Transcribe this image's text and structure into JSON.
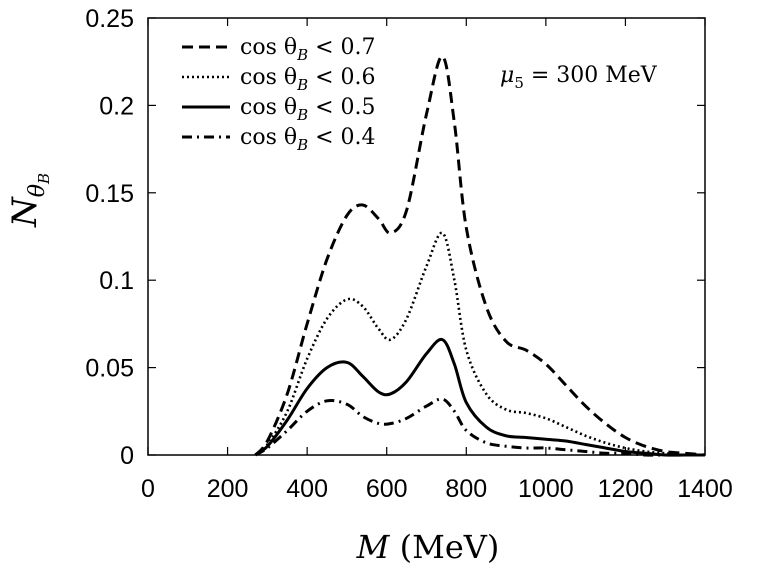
{
  "chart_data": {
    "type": "line",
    "title": "",
    "xlabel": "M",
    "xlabel_unit": "(MeV)",
    "ylabel_main": "N",
    "ylabel_sub": "θ",
    "ylabel_subsub": "B",
    "xlim": [
      0,
      1400
    ],
    "ylim": [
      0,
      0.25
    ],
    "xticks": [
      0,
      200,
      400,
      600,
      800,
      1000,
      1200,
      1400
    ],
    "xtick_labels": [
      "0",
      "200",
      "400",
      "600",
      "800",
      "1000",
      "1200",
      "1400"
    ],
    "yticks": [
      0,
      0.05,
      0.1,
      0.15,
      0.2,
      0.25
    ],
    "ytick_labels": [
      "0",
      "0.05",
      "0.1",
      "0.15",
      "0.2",
      "0.25"
    ],
    "grid": false,
    "legend_position": "top-left",
    "annotation": {
      "prefix": "μ",
      "sub": "5",
      "text": " = 300 MeV"
    },
    "x": [
      270,
      300,
      350,
      400,
      450,
      500,
      540,
      580,
      610,
      650,
      700,
      740,
      770,
      800,
      850,
      900,
      950,
      1000,
      1050,
      1100,
      1150,
      1200,
      1250,
      1300,
      1350,
      1400
    ],
    "series": [
      {
        "name": "cos θ_B < 0.7",
        "label_text": "cos θ",
        "label_sub": "B",
        "label_rest": " < 0.7",
        "style": "dashed",
        "values": [
          0.0,
          0.008,
          0.035,
          0.075,
          0.112,
          0.137,
          0.143,
          0.135,
          0.127,
          0.14,
          0.195,
          0.228,
          0.19,
          0.13,
          0.085,
          0.065,
          0.06,
          0.052,
          0.04,
          0.028,
          0.018,
          0.01,
          0.005,
          0.002,
          0.001,
          0.0
        ]
      },
      {
        "name": "cos θ_B < 0.6",
        "label_text": "cos θ",
        "label_sub": "B",
        "label_rest": " < 0.6",
        "style": "dotted",
        "values": [
          0.0,
          0.006,
          0.025,
          0.055,
          0.078,
          0.089,
          0.085,
          0.072,
          0.066,
          0.078,
          0.108,
          0.127,
          0.1,
          0.06,
          0.035,
          0.026,
          0.024,
          0.021,
          0.016,
          0.011,
          0.007,
          0.004,
          0.002,
          0.001,
          0.0,
          0.0
        ]
      },
      {
        "name": "cos θ_B < 0.5",
        "label_text": "cos θ",
        "label_sub": "B",
        "label_rest": " < 0.5",
        "style": "solid",
        "values": [
          0.0,
          0.005,
          0.02,
          0.038,
          0.05,
          0.053,
          0.045,
          0.036,
          0.035,
          0.042,
          0.058,
          0.066,
          0.052,
          0.03,
          0.016,
          0.011,
          0.01,
          0.009,
          0.008,
          0.006,
          0.004,
          0.002,
          0.001,
          0.0,
          0.0,
          0.0
        ]
      },
      {
        "name": "cos θ_B < 0.4",
        "label_text": "cos θ",
        "label_sub": "B",
        "label_rest": " < 0.4",
        "style": "dashdot",
        "values": [
          0.0,
          0.004,
          0.014,
          0.025,
          0.031,
          0.029,
          0.022,
          0.018,
          0.018,
          0.021,
          0.028,
          0.032,
          0.025,
          0.014,
          0.007,
          0.005,
          0.004,
          0.004,
          0.003,
          0.002,
          0.001,
          0.001,
          0.0,
          0.0,
          0.0,
          0.0
        ]
      }
    ]
  }
}
